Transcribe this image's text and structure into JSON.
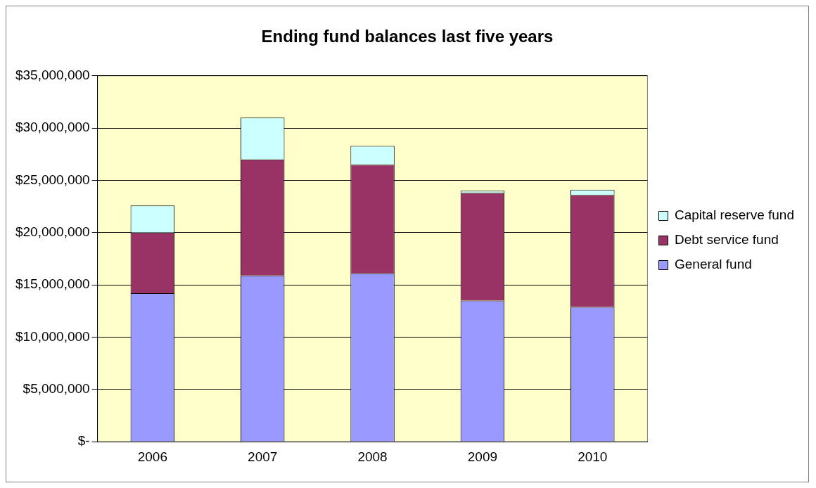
{
  "chart_data": {
    "type": "bar",
    "title": "Ending fund balances last five years",
    "categories": [
      "2006",
      "2007",
      "2008",
      "2009",
      "2010"
    ],
    "stacked": true,
    "series": [
      {
        "name": "General fund",
        "color": "#9999ff",
        "values": [
          14200000,
          15900000,
          16100000,
          13500000,
          12900000
        ]
      },
      {
        "name": "Debt service fund",
        "color": "#993366",
        "values": [
          5800000,
          11100000,
          10400000,
          10300000,
          10700000
        ]
      },
      {
        "name": "Capital reserve fund",
        "color": "#ccffff",
        "values": [
          2600000,
          4000000,
          1800000,
          200000,
          500000
        ]
      }
    ],
    "ylim": [
      0,
      35000000
    ],
    "yticks": [
      {
        "value": 0,
        "label": "$-"
      },
      {
        "value": 5000000,
        "label": "$5,000,000"
      },
      {
        "value": 10000000,
        "label": "$10,000,000"
      },
      {
        "value": 15000000,
        "label": "$15,000,000"
      },
      {
        "value": 20000000,
        "label": "$20,000,000"
      },
      {
        "value": 25000000,
        "label": "$25,000,000"
      },
      {
        "value": 30000000,
        "label": "$30,000,000"
      },
      {
        "value": 35000000,
        "label": "$35,000,000"
      }
    ],
    "grid": "y",
    "legend": "right"
  }
}
